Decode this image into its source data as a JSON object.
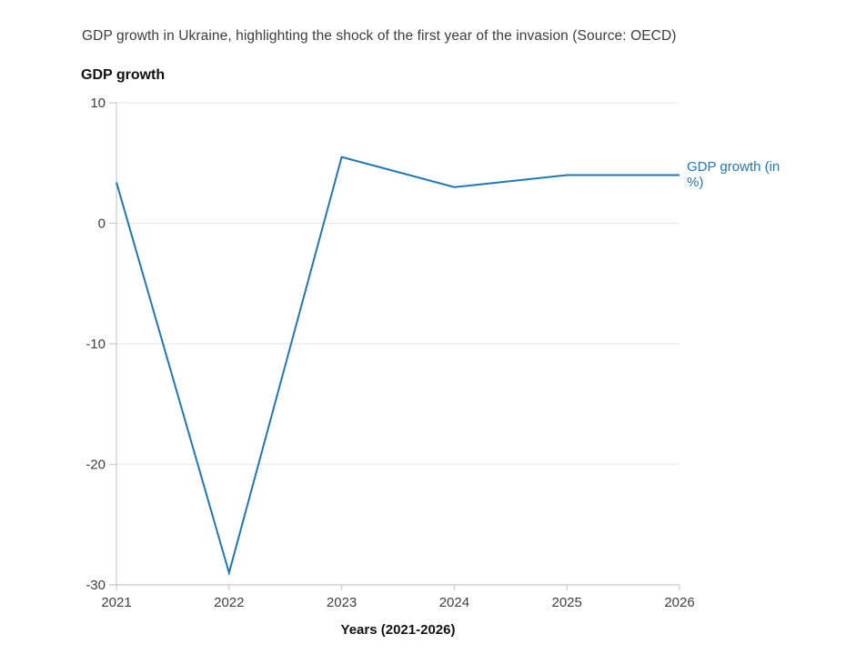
{
  "chart_data": {
    "type": "line",
    "title": "GDP growth in Ukraine, highlighting the shock of the first year of the invasion (Source: OECD)",
    "heading": "GDP growth",
    "xlabel": "Years (2021-2026)",
    "ylabel": "GDP growth",
    "categories": [
      "2021",
      "2022",
      "2023",
      "2024",
      "2025",
      "2026"
    ],
    "series": [
      {
        "name": "GDP growth (in %)",
        "values": [
          3.4,
          -29,
          5.5,
          3.0,
          4.0,
          4.0
        ],
        "color": "#1f77b4"
      }
    ],
    "ylim": [
      -30,
      10
    ],
    "yticks": [
      10,
      0,
      -10,
      -20,
      -30
    ],
    "grid": "horizontal",
    "legend_position": "right-of-line-end"
  },
  "colors": {
    "background": "#ffffff",
    "gridline": "#ebebeb",
    "axis": "#cccccc",
    "tick_label": "#3f3f3f",
    "series_line": "#1f77b4",
    "legend_text": "#1f77b4",
    "title_text": "#3c3c3c"
  }
}
